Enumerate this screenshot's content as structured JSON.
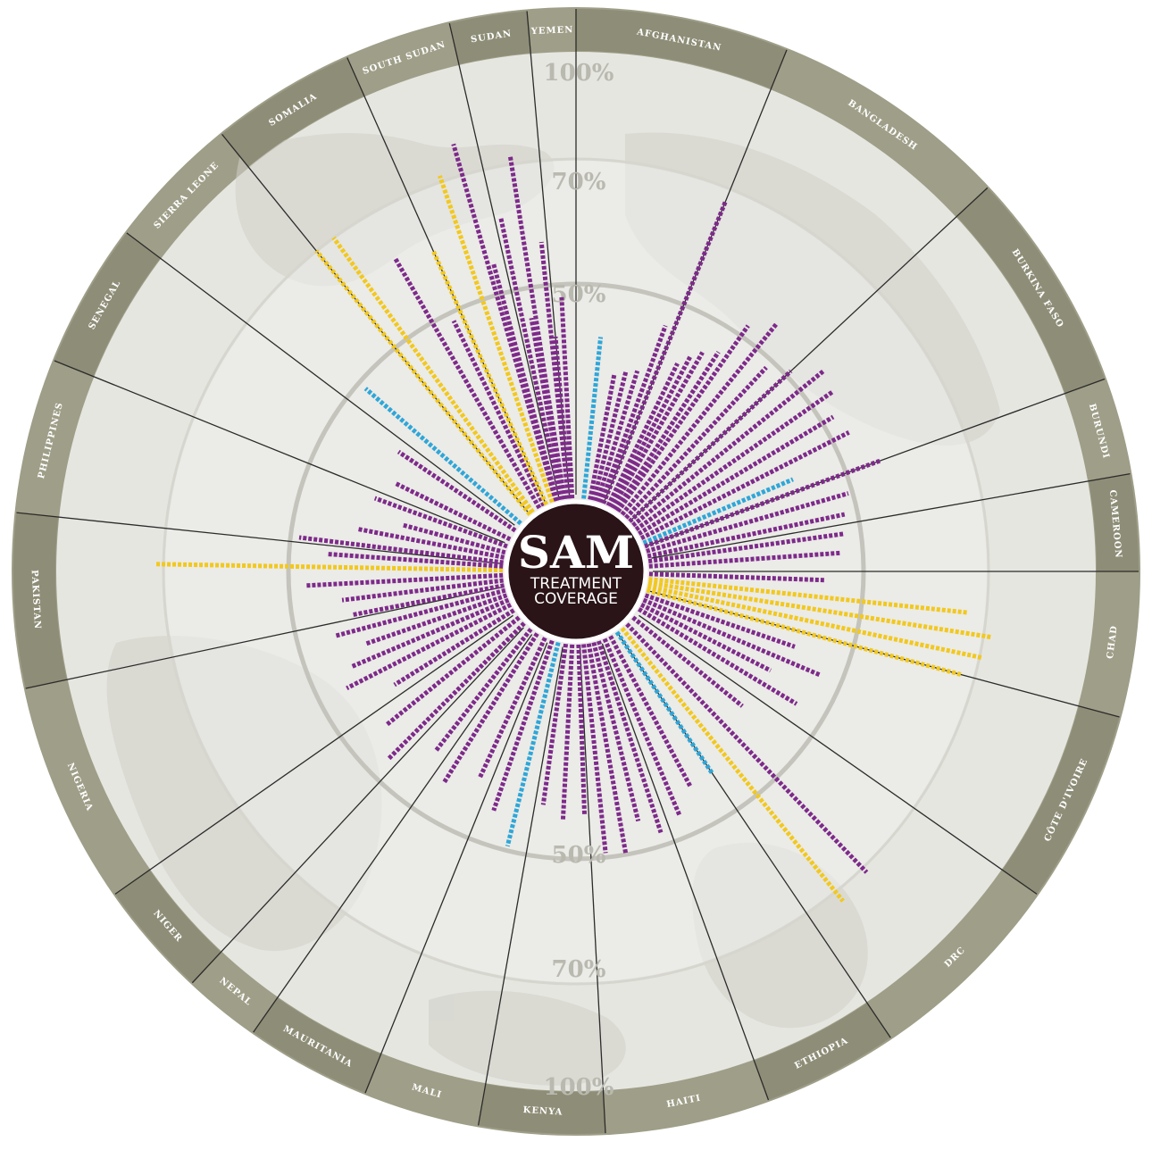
{
  "center": {
    "title": "SAM",
    "subtitle_line1": "TREATMENT",
    "subtitle_line2": "COVERAGE"
  },
  "colors": {
    "ring": "#9f9e88",
    "ring_dark": "#8e8d77",
    "face": "#e6e6e1",
    "inner_face": "#efefec",
    "map_land": "#cfcfc8",
    "spoke": "#2b2b2b",
    "center_disc": "#2a1418",
    "purple": "#7d2a8a",
    "yellow": "#f2c81e",
    "blue": "#2fa6d8"
  },
  "chart_data": {
    "type": "radial-bar",
    "title": "SAM",
    "subtitle": "TREATMENT COVERAGE",
    "scale_labels": [
      "50%",
      "70%",
      "100%"
    ],
    "scale_levels": [
      50,
      70,
      100
    ],
    "countries": [
      "AFGHANISTAN",
      "BANGLADESH",
      "BURKINA FASO",
      "BURUNDI",
      "CAMEROON",
      "CHAD",
      "CÔTE D'IVOIRE",
      "DRC",
      "ETHIOPIA",
      "HAITI",
      "KENYA",
      "MALI",
      "MAURITANIA",
      "NEPAL",
      "NIGER",
      "NIGERIA",
      "PAKISTAN",
      "PHILIPPINES",
      "SENEGAL",
      "SIERRA LEONE",
      "SOMALIA",
      "SOUTH SUDAN",
      "SUDAN",
      "YEMEN"
    ],
    "legend_colors": {
      "purple": "#7d2a8a",
      "yellow": "#f2c81e",
      "blue": "#2fa6d8"
    },
    "bars": [
      {
        "angle": -16,
        "value": 81,
        "color": "purple"
      },
      {
        "angle": -12,
        "value": 62,
        "color": "purple"
      },
      {
        "angle": -9,
        "value": 73,
        "color": "purple"
      },
      {
        "angle": -6,
        "value": 57,
        "color": "purple"
      },
      {
        "angle": -3,
        "value": 47,
        "color": "purple"
      },
      {
        "angle": 6,
        "value": 38,
        "color": "blue"
      },
      {
        "angle": 11,
        "value": 30,
        "color": "purple"
      },
      {
        "angle": 14,
        "value": 31,
        "color": "purple"
      },
      {
        "angle": 17,
        "value": 32,
        "color": "purple"
      },
      {
        "angle": 20,
        "value": 44,
        "color": "purple"
      },
      {
        "angle": 22,
        "value": 68,
        "color": "purple"
      },
      {
        "angle": 26,
        "value": 37,
        "color": "purple"
      },
      {
        "angle": 28,
        "value": 40,
        "color": "purple"
      },
      {
        "angle": 30,
        "value": 42,
        "color": "purple"
      },
      {
        "angle": 33,
        "value": 44,
        "color": "purple"
      },
      {
        "angle": 35,
        "value": 52,
        "color": "purple"
      },
      {
        "angle": 39,
        "value": 55,
        "color": "purple"
      },
      {
        "angle": 43,
        "value": 48,
        "color": "purple"
      },
      {
        "angle": 47,
        "value": 51,
        "color": "purple"
      },
      {
        "angle": 51,
        "value": 55,
        "color": "purple"
      },
      {
        "angle": 55,
        "value": 54,
        "color": "purple"
      },
      {
        "angle": 59,
        "value": 52,
        "color": "purple"
      },
      {
        "angle": 63,
        "value": 53,
        "color": "purple"
      },
      {
        "angle": 67,
        "value": 38,
        "color": "blue"
      },
      {
        "angle": 70,
        "value": 56,
        "color": "purple"
      },
      {
        "angle": 74,
        "value": 49,
        "color": "purple"
      },
      {
        "angle": 78,
        "value": 47,
        "color": "purple"
      },
      {
        "angle": 82,
        "value": 46,
        "color": "purple"
      },
      {
        "angle": 86,
        "value": 45,
        "color": "purple"
      },
      {
        "angle": 92,
        "value": 41,
        "color": "purple"
      },
      {
        "angle": 96,
        "value": 67,
        "color": "yellow"
      },
      {
        "angle": 99,
        "value": 73,
        "color": "yellow"
      },
      {
        "angle": 102,
        "value": 71,
        "color": "yellow"
      },
      {
        "angle": 105,
        "value": 68,
        "color": "yellow"
      },
      {
        "angle": 109,
        "value": 37,
        "color": "purple"
      },
      {
        "angle": 113,
        "value": 45,
        "color": "purple"
      },
      {
        "angle": 117,
        "value": 34,
        "color": "purple"
      },
      {
        "angle": 121,
        "value": 43,
        "color": "purple"
      },
      {
        "angle": 129,
        "value": 33,
        "color": "purple"
      },
      {
        "angle": 146,
        "value": 40,
        "color": "blue"
      },
      {
        "angle": 141,
        "value": 74,
        "color": "yellow"
      },
      {
        "angle": 136,
        "value": 72,
        "color": "purple"
      },
      {
        "angle": 152,
        "value": 40,
        "color": "purple"
      },
      {
        "angle": 157,
        "value": 45,
        "color": "purple"
      },
      {
        "angle": 162,
        "value": 47,
        "color": "purple"
      },
      {
        "angle": 166,
        "value": 43,
        "color": "purple"
      },
      {
        "angle": 170,
        "value": 50,
        "color": "purple"
      },
      {
        "angle": 174,
        "value": 49,
        "color": "purple"
      },
      {
        "angle": 178,
        "value": 40,
        "color": "purple"
      },
      {
        "angle": 183,
        "value": 41,
        "color": "purple"
      },
      {
        "angle": 188,
        "value": 38,
        "color": "purple"
      },
      {
        "angle": 194,
        "value": 49,
        "color": "blue"
      },
      {
        "angle": 199,
        "value": 42,
        "color": "purple"
      },
      {
        "angle": 205,
        "value": 36,
        "color": "purple"
      },
      {
        "angle": 212,
        "value": 41,
        "color": "purple"
      },
      {
        "angle": 218,
        "value": 36,
        "color": "purple"
      },
      {
        "angle": 225,
        "value": 45,
        "color": "purple"
      },
      {
        "angle": 231,
        "value": 40,
        "color": "purple"
      },
      {
        "angle": 238,
        "value": 33,
        "color": "purple"
      },
      {
        "angle": 243,
        "value": 43,
        "color": "purple"
      },
      {
        "angle": 247,
        "value": 40,
        "color": "purple"
      },
      {
        "angle": 251,
        "value": 35,
        "color": "purple"
      },
      {
        "angle": 255,
        "value": 41,
        "color": "purple"
      },
      {
        "angle": 259,
        "value": 36,
        "color": "purple"
      },
      {
        "angle": 263,
        "value": 38,
        "color": "purple"
      },
      {
        "angle": 267,
        "value": 46,
        "color": "purple"
      },
      {
        "angle": 271,
        "value": 73,
        "color": "yellow"
      },
      {
        "angle": 274,
        "value": 41,
        "color": "purple"
      },
      {
        "angle": 277,
        "value": 48,
        "color": "purple"
      },
      {
        "angle": 281,
        "value": 35,
        "color": "purple"
      },
      {
        "angle": 285,
        "value": 25,
        "color": "purple"
      },
      {
        "angle": 290,
        "value": 33,
        "color": "purple"
      },
      {
        "angle": 296,
        "value": 30,
        "color": "purple"
      },
      {
        "angle": 304,
        "value": 33,
        "color": "purple"
      },
      {
        "angle": 311,
        "value": 48,
        "color": "blue"
      },
      {
        "angle": 321,
        "value": 70,
        "color": "yellow"
      },
      {
        "angle": 324,
        "value": 70,
        "color": "yellow"
      },
      {
        "angle": 330,
        "value": 62,
        "color": "purple"
      },
      {
        "angle": 334,
        "value": 48,
        "color": "purple"
      },
      {
        "angle": 336,
        "value": 60,
        "color": "yellow"
      },
      {
        "angle": 341,
        "value": 72,
        "color": "yellow"
      },
      {
        "angle": 345,
        "value": 55,
        "color": "purple"
      },
      {
        "angle": 350,
        "value": 43,
        "color": "purple"
      },
      {
        "angle": 355,
        "value": 38,
        "color": "purple"
      }
    ]
  }
}
